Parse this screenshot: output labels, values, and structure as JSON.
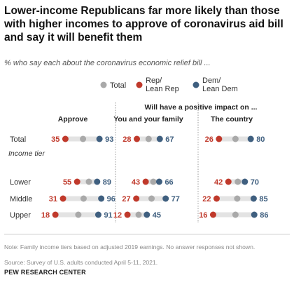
{
  "title": "Lower-income Republicans far more likely than those with higher incomes to approve of coronavirus aid bill and say it will benefit them",
  "subtitle": "% who say each about the coronavirus economic relief bill ...",
  "notes": [
    "Note: Family income tiers based on adjusted 2019 earnings. No answer responses not shown.",
    "Source: Survey of U.S. adults conducted April 5-11, 2021."
  ],
  "brand": "PEW RESEARCH CENTER",
  "colors": {
    "total": "#a9a9a9",
    "rep": "#c0392b",
    "dem": "#3f5f7f",
    "track": "#e3e3e3"
  },
  "chart_data": {
    "type": "dot",
    "legend": [
      {
        "key": "total",
        "label": "Total"
      },
      {
        "key": "rep",
        "label": "Rep/\nLean Rep"
      },
      {
        "key": "dem",
        "label": "Dem/\nLean Dem"
      }
    ],
    "group_header": "Will have a positive impact on ...",
    "panels": [
      {
        "title": "Approve"
      },
      {
        "title": "You and your family"
      },
      {
        "title": "The country"
      }
    ],
    "section_label": "Income tier",
    "rows": [
      {
        "label": "Total",
        "values": [
          {
            "total": 65,
            "rep": 35,
            "dem": 93
          },
          {
            "total": 48,
            "rep": 28,
            "dem": 67
          },
          {
            "total": 54,
            "rep": 26,
            "dem": 80
          }
        ]
      },
      {
        "label": "Lower",
        "values": [
          {
            "total": 75,
            "rep": 55,
            "dem": 89
          },
          {
            "total": 56,
            "rep": 43,
            "dem": 66
          },
          {
            "total": 58,
            "rep": 42,
            "dem": 70
          }
        ]
      },
      {
        "label": "Middle",
        "values": [
          {
            "total": 66,
            "rep": 31,
            "dem": 96
          },
          {
            "total": 53,
            "rep": 27,
            "dem": 77
          },
          {
            "total": 57,
            "rep": 22,
            "dem": 85
          }
        ]
      },
      {
        "label": "Upper",
        "values": [
          {
            "total": 57,
            "rep": 18,
            "dem": 91
          },
          {
            "total": 31,
            "rep": 12,
            "dem": 45
          },
          {
            "total": 54,
            "rep": 16,
            "dem": 86
          }
        ]
      }
    ]
  }
}
